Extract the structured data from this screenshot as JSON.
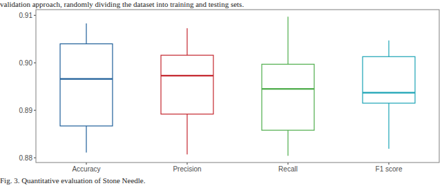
{
  "chart_data": {
    "type": "box",
    "title": "Fig. 3. Quantitative evaluation of Stone Needle.",
    "annotations": [
      "validation approach, randomly dividing the dataset into training and testing sets."
    ],
    "categories": [
      "Accuracy",
      "Precision",
      "Recall",
      "F1 score"
    ],
    "min": [
      0.8811,
      0.8807,
      0.8804,
      0.8819
    ],
    "q1": [
      0.8867,
      0.8892,
      0.8858,
      0.8915
    ],
    "median": [
      0.8966,
      0.8973,
      0.8945,
      0.8937
    ],
    "q3": [
      0.904,
      0.9016,
      0.8997,
      0.9013
    ],
    "max": [
      0.9083,
      0.9073,
      0.9097,
      0.9047
    ],
    "colors": [
      "#1f5f99",
      "#c4262e",
      "#4dac4a",
      "#1aa3b5"
    ],
    "ylim": [
      0.879,
      0.9112
    ],
    "yticks": [
      0.88,
      0.89,
      {
        "value": 0.9,
        "label": "0.90"
      },
      0.91
    ],
    "grid": false
  }
}
